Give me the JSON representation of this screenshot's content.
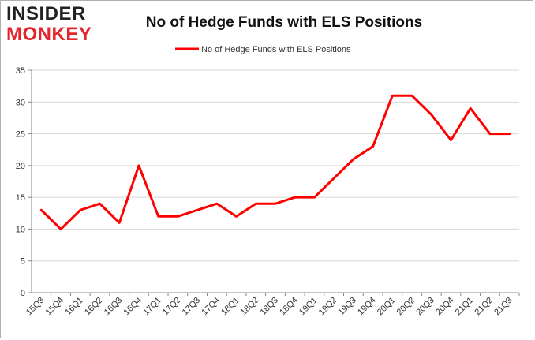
{
  "logo": {
    "line1": "INSIDER",
    "line2": "MONKEY"
  },
  "chart_data": {
    "type": "line",
    "title": "No of Hedge Funds with ELS Positions",
    "xlabel": "",
    "ylabel": "",
    "categories": [
      "15Q3",
      "15Q4",
      "16Q1",
      "16Q2",
      "16Q3",
      "16Q4",
      "17Q1",
      "17Q2",
      "17Q3",
      "17Q4",
      "18Q1",
      "18Q2",
      "18Q3",
      "18Q4",
      "19Q1",
      "19Q2",
      "19Q3",
      "19Q4",
      "20Q1",
      "20Q2",
      "20Q3",
      "20Q4",
      "21Q1",
      "21Q2",
      "21Q3"
    ],
    "series": [
      {
        "name": "No of Hedge Funds with ELS Positions",
        "color": "#ff0000",
        "values": [
          13,
          10,
          13,
          14,
          11,
          20,
          12,
          12,
          13,
          14,
          12,
          14,
          14,
          15,
          15,
          18,
          21,
          23,
          31,
          31,
          28,
          24,
          29,
          25,
          25
        ]
      }
    ],
    "ylim": [
      0,
      35
    ],
    "yticks": [
      0,
      5,
      10,
      15,
      20,
      25,
      30,
      35
    ],
    "grid": true,
    "legend": "top-center"
  }
}
